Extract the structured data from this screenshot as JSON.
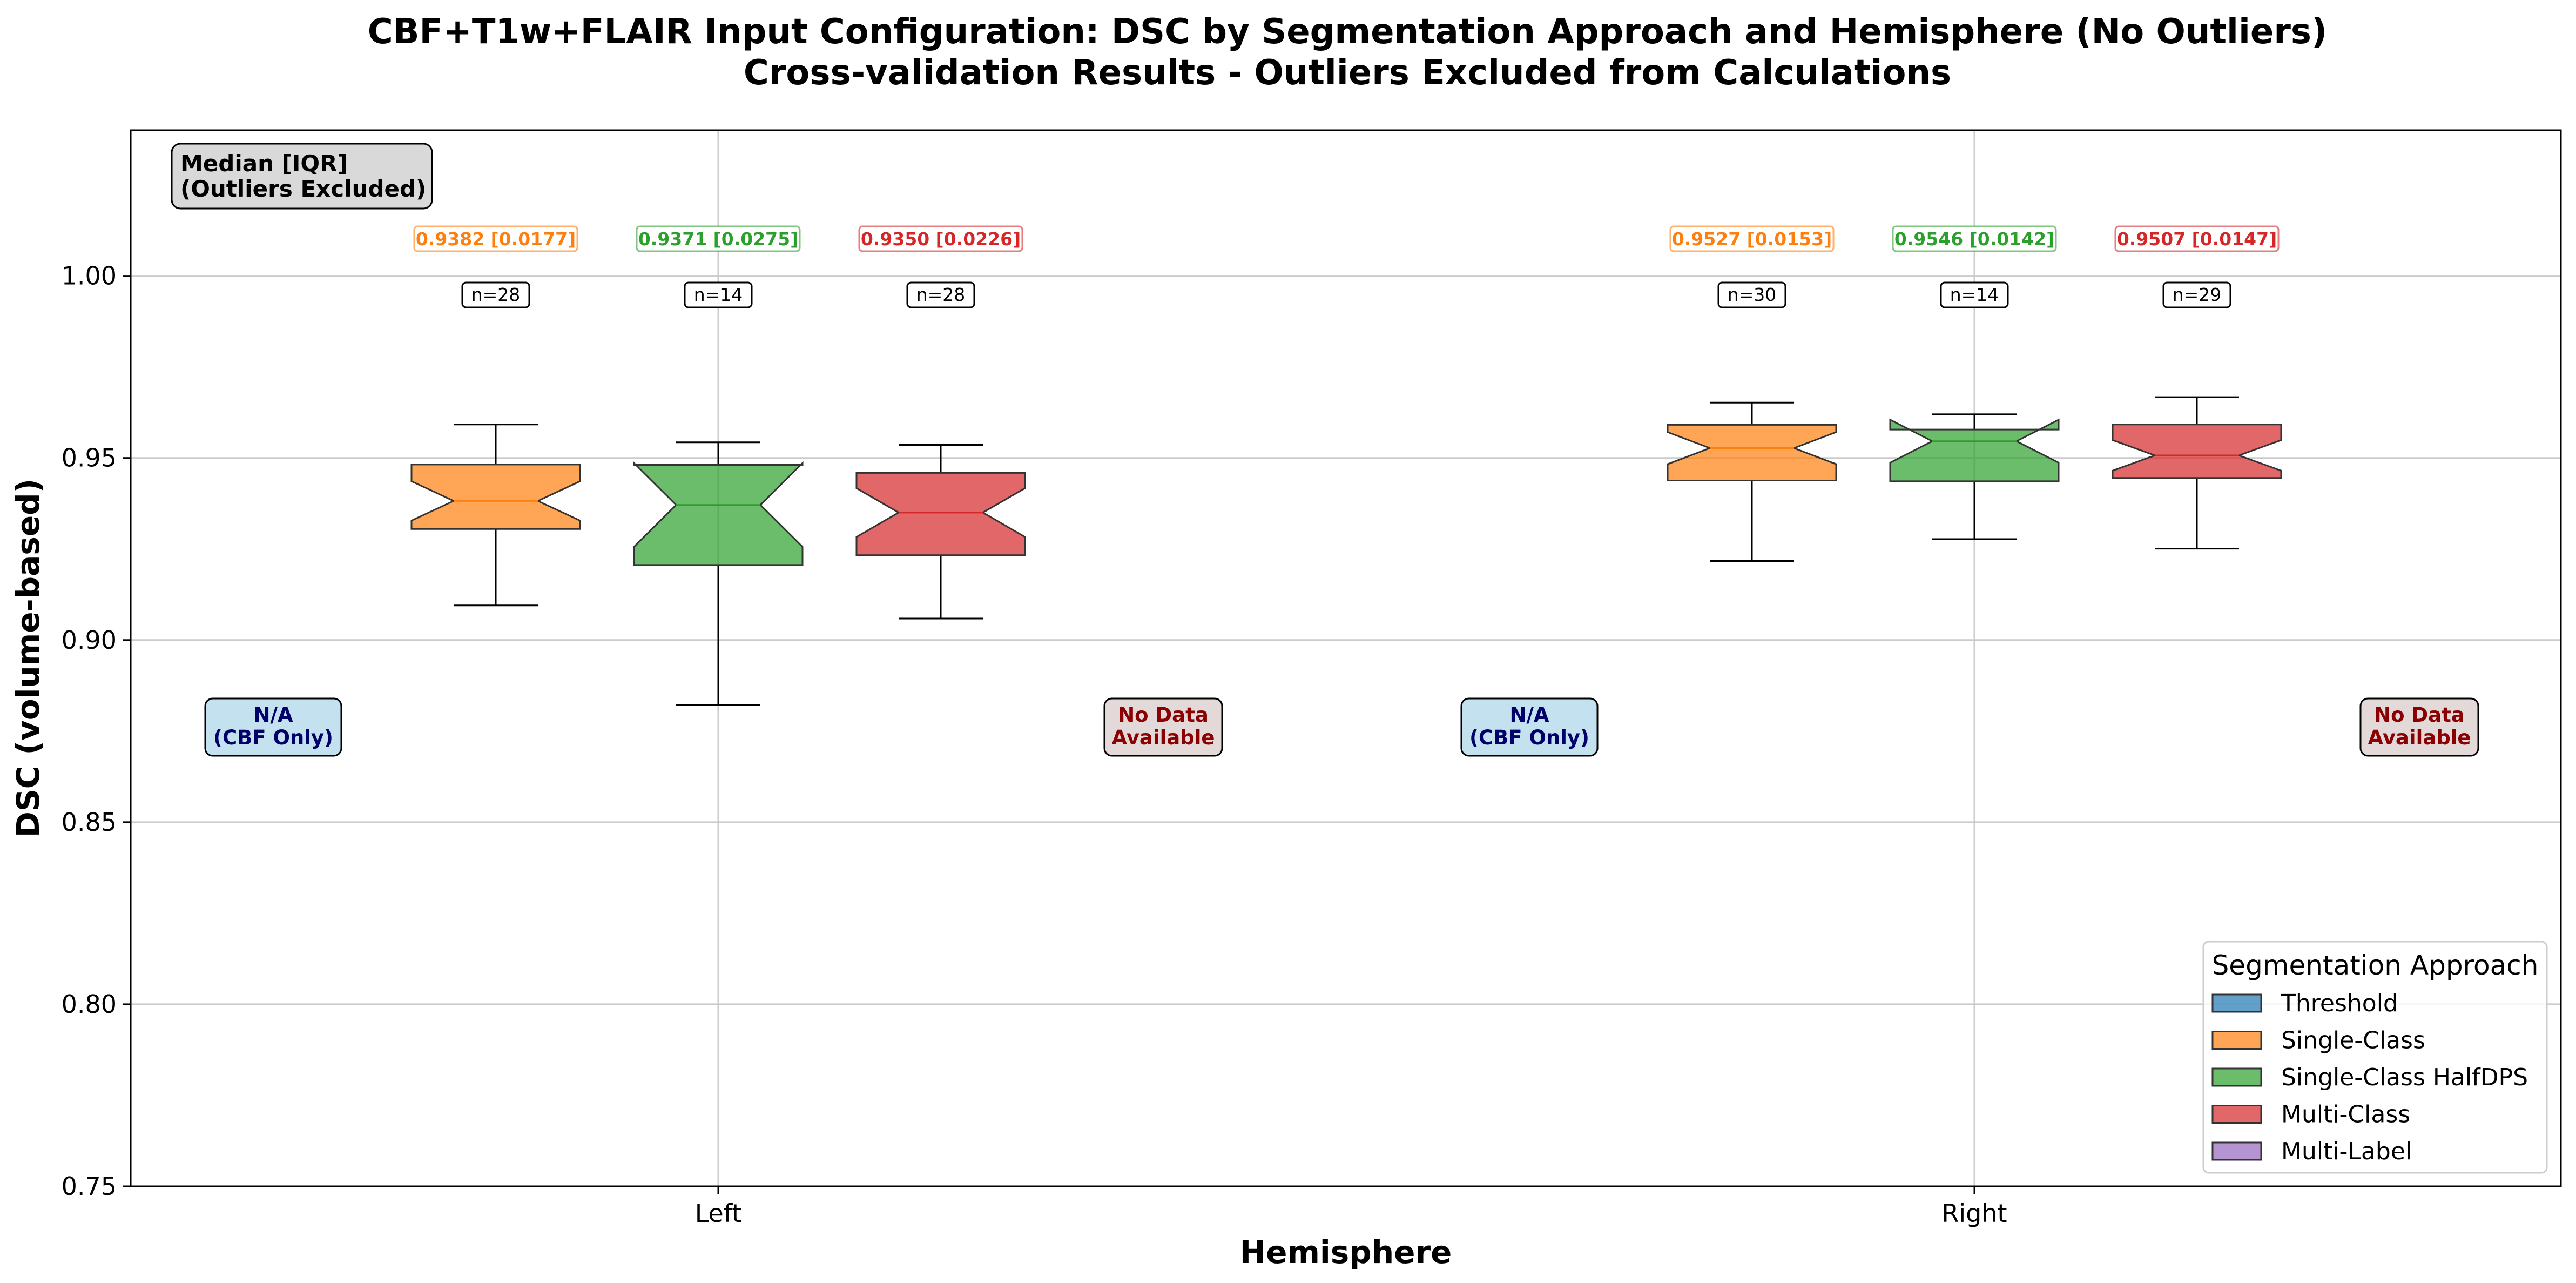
{
  "chart_data": {
    "type": "box",
    "title": "CBF+T1w+FLAIR Input Configuration: DSC by Segmentation Approach and Hemisphere (No Outliers)",
    "subtitle": "Cross-validation Results - Outliers Excluded from Calculations",
    "xlabel": "Hemisphere",
    "ylabel": "DSC (volume-based)",
    "ylim": [
      0.75,
      1.04
    ],
    "yticks": [
      "0.75",
      "0.80",
      "0.85",
      "0.90",
      "0.95",
      "1.00"
    ],
    "categories": [
      "Left",
      "Right"
    ],
    "grid": true,
    "corner_annotation": [
      "Median [IQR]",
      "(Outliers Excluded)"
    ],
    "legend": {
      "title": "Segmentation Approach",
      "placement": "lower-right",
      "entries": [
        {
          "name": "Threshold",
          "color": "#1f77b4"
        },
        {
          "name": "Single-Class",
          "color": "#ff7f0e"
        },
        {
          "name": "Single-Class HalfDPS",
          "color": "#2ca02c"
        },
        {
          "name": "Multi-Class",
          "color": "#d62728"
        },
        {
          "name": "Multi-Label",
          "color": "#9467bd"
        }
      ]
    },
    "placeholders": [
      {
        "hemisphere": "Left",
        "series": "Threshold",
        "lines": [
          "N/A",
          "(CBF Only)"
        ],
        "style": "na"
      },
      {
        "hemisphere": "Left",
        "series": "Multi-Label",
        "lines": [
          "No Data",
          "Available"
        ],
        "style": "nodata"
      },
      {
        "hemisphere": "Right",
        "series": "Threshold",
        "lines": [
          "N/A",
          "(CBF Only)"
        ],
        "style": "na"
      },
      {
        "hemisphere": "Right",
        "series": "Multi-Label",
        "lines": [
          "No Data",
          "Available"
        ],
        "style": "nodata"
      }
    ],
    "boxes": [
      {
        "hemisphere": "Left",
        "series": "Single-Class",
        "color": "#ff7f0e",
        "whisker_low": 0.9095,
        "q1": 0.9305,
        "median": 0.9382,
        "q3": 0.9482,
        "whisker_high": 0.9592,
        "notch_low": 0.9328,
        "notch_high": 0.9436,
        "stat_label": "0.9382 [0.0177]",
        "n_label": "n=28"
      },
      {
        "hemisphere": "Left",
        "series": "Single-Class HalfDPS",
        "color": "#2ca02c",
        "whisker_low": 0.8822,
        "q1": 0.9206,
        "median": 0.9371,
        "q3": 0.9481,
        "whisker_high": 0.9543,
        "notch_low": 0.9256,
        "notch_high": 0.9486,
        "stat_label": "0.9371 [0.0275]",
        "n_label": "n=14"
      },
      {
        "hemisphere": "Left",
        "series": "Multi-Class",
        "color": "#d62728",
        "whisker_low": 0.9059,
        "q1": 0.9233,
        "median": 0.935,
        "q3": 0.9459,
        "whisker_high": 0.9536,
        "notch_low": 0.9283,
        "notch_high": 0.9417,
        "stat_label": "0.9350 [0.0226]",
        "n_label": "n=28"
      },
      {
        "hemisphere": "Right",
        "series": "Single-Class",
        "color": "#ff7f0e",
        "whisker_low": 0.9217,
        "q1": 0.9438,
        "median": 0.9527,
        "q3": 0.9591,
        "whisker_high": 0.9652,
        "notch_low": 0.9483,
        "notch_high": 0.9571,
        "stat_label": "0.9527 [0.0153]",
        "n_label": "n=30"
      },
      {
        "hemisphere": "Right",
        "series": "Single-Class HalfDPS",
        "color": "#2ca02c",
        "whisker_low": 0.9277,
        "q1": 0.9436,
        "median": 0.9546,
        "q3": 0.9578,
        "whisker_high": 0.962,
        "notch_low": 0.9487,
        "notch_high": 0.9605,
        "stat_label": "0.9546 [0.0142]",
        "n_label": "n=14"
      },
      {
        "hemisphere": "Right",
        "series": "Multi-Class",
        "color": "#d62728",
        "whisker_low": 0.9251,
        "q1": 0.9445,
        "median": 0.9507,
        "q3": 0.9592,
        "whisker_high": 0.9667,
        "notch_low": 0.9465,
        "notch_high": 0.9549,
        "stat_label": "0.9507 [0.0147]",
        "n_label": "n=29"
      }
    ]
  }
}
